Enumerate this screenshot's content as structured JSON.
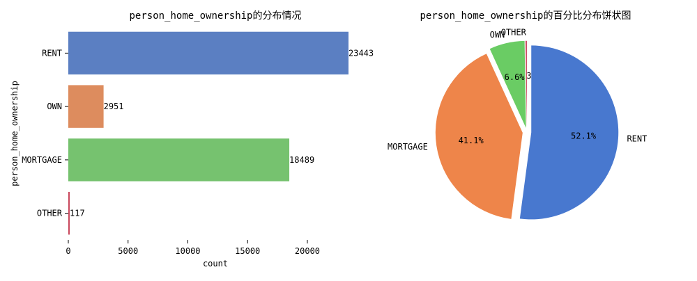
{
  "chart_data": [
    {
      "type": "bar",
      "orientation": "horizontal",
      "title": "person_home_ownership的分布情况",
      "xlabel": "count",
      "ylabel": "person_home_ownership",
      "categories": [
        "RENT",
        "OWN",
        "MORTGAGE",
        "OTHER"
      ],
      "values": [
        23443,
        2951,
        18489,
        117
      ],
      "data_labels": [
        "23443",
        "2951",
        "18489",
        "117"
      ],
      "colors": [
        "#5b7fc2",
        "#dd8c5e",
        "#76c26f",
        "#c9475c"
      ],
      "xlim": [
        0,
        23443
      ],
      "xticks": [
        0,
        5000,
        10000,
        15000,
        20000
      ],
      "xtick_labels": [
        "0",
        "5000",
        "10000",
        "15000",
        "20000"
      ],
      "grid": false
    },
    {
      "type": "pie",
      "title": "person_home_ownership的百分比分布饼状图",
      "labels": [
        "OTHER",
        "OWN",
        "MORTGAGE",
        "RENT"
      ],
      "values": [
        117,
        2951,
        18489,
        23443
      ],
      "percent_labels": [
        "0.3%",
        "6.6%",
        "41.1%",
        "52.1%"
      ],
      "colors": [
        "#c9475c",
        "#6acc64",
        "#ee854a",
        "#4878cf"
      ],
      "exploded": true
    }
  ]
}
